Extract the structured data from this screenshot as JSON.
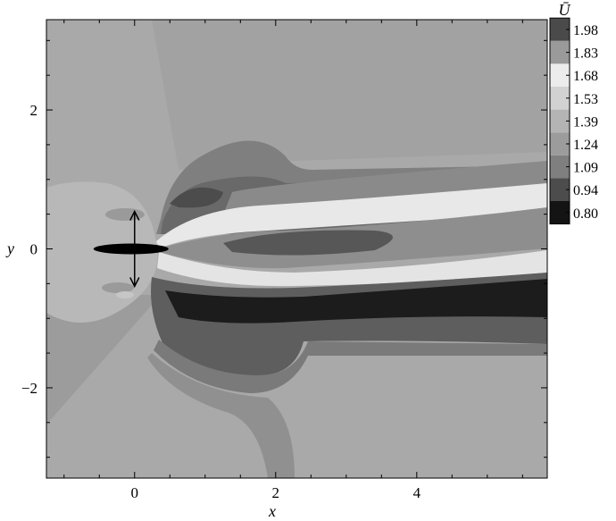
{
  "chart_data": {
    "type": "heatmap",
    "description_kind": "filled contour plot",
    "xlabel": "x",
    "ylabel": "y",
    "xlim": [
      -1.25,
      5.85
    ],
    "ylim": [
      -3.3,
      3.3
    ],
    "x_ticks": [
      0,
      2,
      4
    ],
    "x_tick_labels": [
      "0",
      "2",
      "4"
    ],
    "y_ticks": [
      -2,
      0,
      2
    ],
    "y_tick_labels": [
      "−2",
      "0",
      "2"
    ],
    "colorbar": {
      "title": "Ū",
      "levels": [
        1.98,
        1.83,
        1.68,
        1.53,
        1.39,
        1.24,
        1.09,
        0.94,
        0.8
      ],
      "level_labels": [
        "1.98",
        "1.83",
        "1.68",
        "1.53",
        "1.39",
        "1.24",
        "1.09",
        "0.94",
        "0.80"
      ],
      "colors": [
        "#4a4a4a",
        "#9a9a9a",
        "#ececec",
        "#d2d2d2",
        "#b4b4b4",
        "#9c9c9c",
        "#7f7f7f",
        "#4c4c4c",
        "#141414"
      ]
    },
    "grid": false,
    "palette": {
      "background": "#a8a8a8",
      "upstream_bubble": "#b9b9b9",
      "wake_light": "#e6e6e6",
      "wake_dark": "#222222",
      "body": "#000000"
    }
  }
}
